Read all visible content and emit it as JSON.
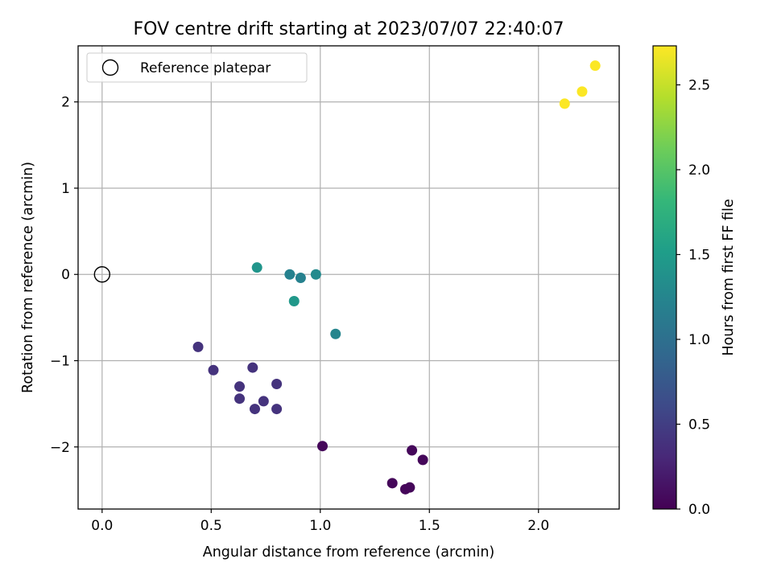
{
  "chart_data": {
    "type": "scatter",
    "title": "FOV centre drift starting at 2023/07/07 22:40:07",
    "xlabel": "Angular distance from reference (arcmin)",
    "ylabel": "Rotation from reference (arcmin)",
    "xlim": [
      -0.11,
      2.37
    ],
    "ylim": [
      -2.72,
      2.65
    ],
    "xticks": [
      0.0,
      0.5,
      1.0,
      1.5,
      2.0
    ],
    "xtick_labels": [
      "0.0",
      "0.5",
      "1.0",
      "1.5",
      "2.0"
    ],
    "yticks": [
      -2,
      -1,
      0,
      1,
      2
    ],
    "ytick_labels": [
      "−2",
      "−1",
      "0",
      "1",
      "2"
    ],
    "grid": true,
    "legend": {
      "placement": "upper-left",
      "entries": [
        {
          "label": "Reference platepar",
          "marker": "open-circle",
          "color": "#000000"
        }
      ]
    },
    "reference_point": {
      "x": 0.0,
      "y": 0.0
    },
    "colorbar": {
      "label": "Hours from first FF file",
      "colormap": "viridis",
      "range": [
        0.0,
        2.73
      ],
      "ticks": [
        0.0,
        0.5,
        1.0,
        1.5,
        2.0,
        2.5
      ],
      "tick_labels": [
        "0.0",
        "0.5",
        "1.0",
        "1.5",
        "2.0",
        "2.5"
      ]
    },
    "points": [
      {
        "x": 1.01,
        "y": -1.99,
        "c": 0.05
      },
      {
        "x": 1.42,
        "y": -2.04,
        "c": 0.05
      },
      {
        "x": 1.47,
        "y": -2.15,
        "c": 0.05
      },
      {
        "x": 1.33,
        "y": -2.42,
        "c": 0.05
      },
      {
        "x": 1.39,
        "y": -2.49,
        "c": 0.05
      },
      {
        "x": 1.41,
        "y": -2.47,
        "c": 0.05
      },
      {
        "x": 0.44,
        "y": -0.84,
        "c": 0.4
      },
      {
        "x": 0.51,
        "y": -1.11,
        "c": 0.4
      },
      {
        "x": 0.63,
        "y": -1.3,
        "c": 0.4
      },
      {
        "x": 0.63,
        "y": -1.44,
        "c": 0.4
      },
      {
        "x": 0.7,
        "y": -1.56,
        "c": 0.4
      },
      {
        "x": 0.69,
        "y": -1.08,
        "c": 0.4
      },
      {
        "x": 0.74,
        "y": -1.47,
        "c": 0.4
      },
      {
        "x": 0.8,
        "y": -1.27,
        "c": 0.4
      },
      {
        "x": 0.8,
        "y": -1.56,
        "c": 0.4
      },
      {
        "x": 0.71,
        "y": 0.08,
        "c": 1.42
      },
      {
        "x": 0.86,
        "y": 0.0,
        "c": 1.2
      },
      {
        "x": 0.91,
        "y": -0.04,
        "c": 1.2
      },
      {
        "x": 0.98,
        "y": 0.0,
        "c": 1.3
      },
      {
        "x": 0.88,
        "y": -0.31,
        "c": 1.45
      },
      {
        "x": 1.07,
        "y": -0.69,
        "c": 1.25
      },
      {
        "x": 2.12,
        "y": 1.98,
        "c": 2.72
      },
      {
        "x": 2.2,
        "y": 2.12,
        "c": 2.72
      },
      {
        "x": 2.26,
        "y": 2.42,
        "c": 2.72
      }
    ]
  }
}
